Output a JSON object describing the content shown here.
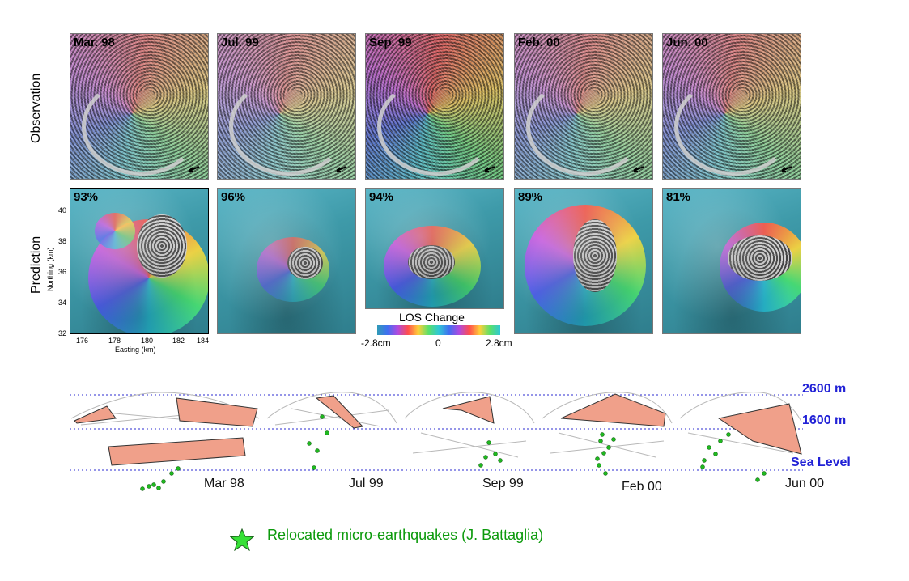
{
  "rows": {
    "observation": "Observation",
    "prediction": "Prediction"
  },
  "observation_panels": [
    "Mar. 98",
    "Jul. 99",
    "Sep. 99",
    "Feb. 00",
    "Jun. 00"
  ],
  "prediction_panels": [
    "93%",
    "96%",
    "94%",
    "89%",
    "81%"
  ],
  "axes": {
    "ylabel": "Northing (km)",
    "xlabel": "Easting (km)",
    "yticks": [
      "40",
      "38",
      "36",
      "34",
      "32"
    ],
    "xticks": [
      "176",
      "178",
      "180",
      "182",
      "184"
    ]
  },
  "colorbar": {
    "title": "LOS Change",
    "min": "-2.8cm",
    "mid": "0",
    "max": "2.8cm"
  },
  "cross_sections": {
    "months": [
      "Mar 98",
      "Jul 99",
      "Sep 99",
      "Feb 00",
      "Jun 00"
    ],
    "levels": [
      "2600 m",
      "1600 m",
      "Sea Level"
    ]
  },
  "legend": {
    "label": "Relocated micro-earthquakes (J. Battaglia)"
  },
  "colors": {
    "level_text": "#2121d6",
    "legend_text": "#0c9a0c",
    "fault_plane": "#f0a08a",
    "quake": "#1fb81f"
  }
}
